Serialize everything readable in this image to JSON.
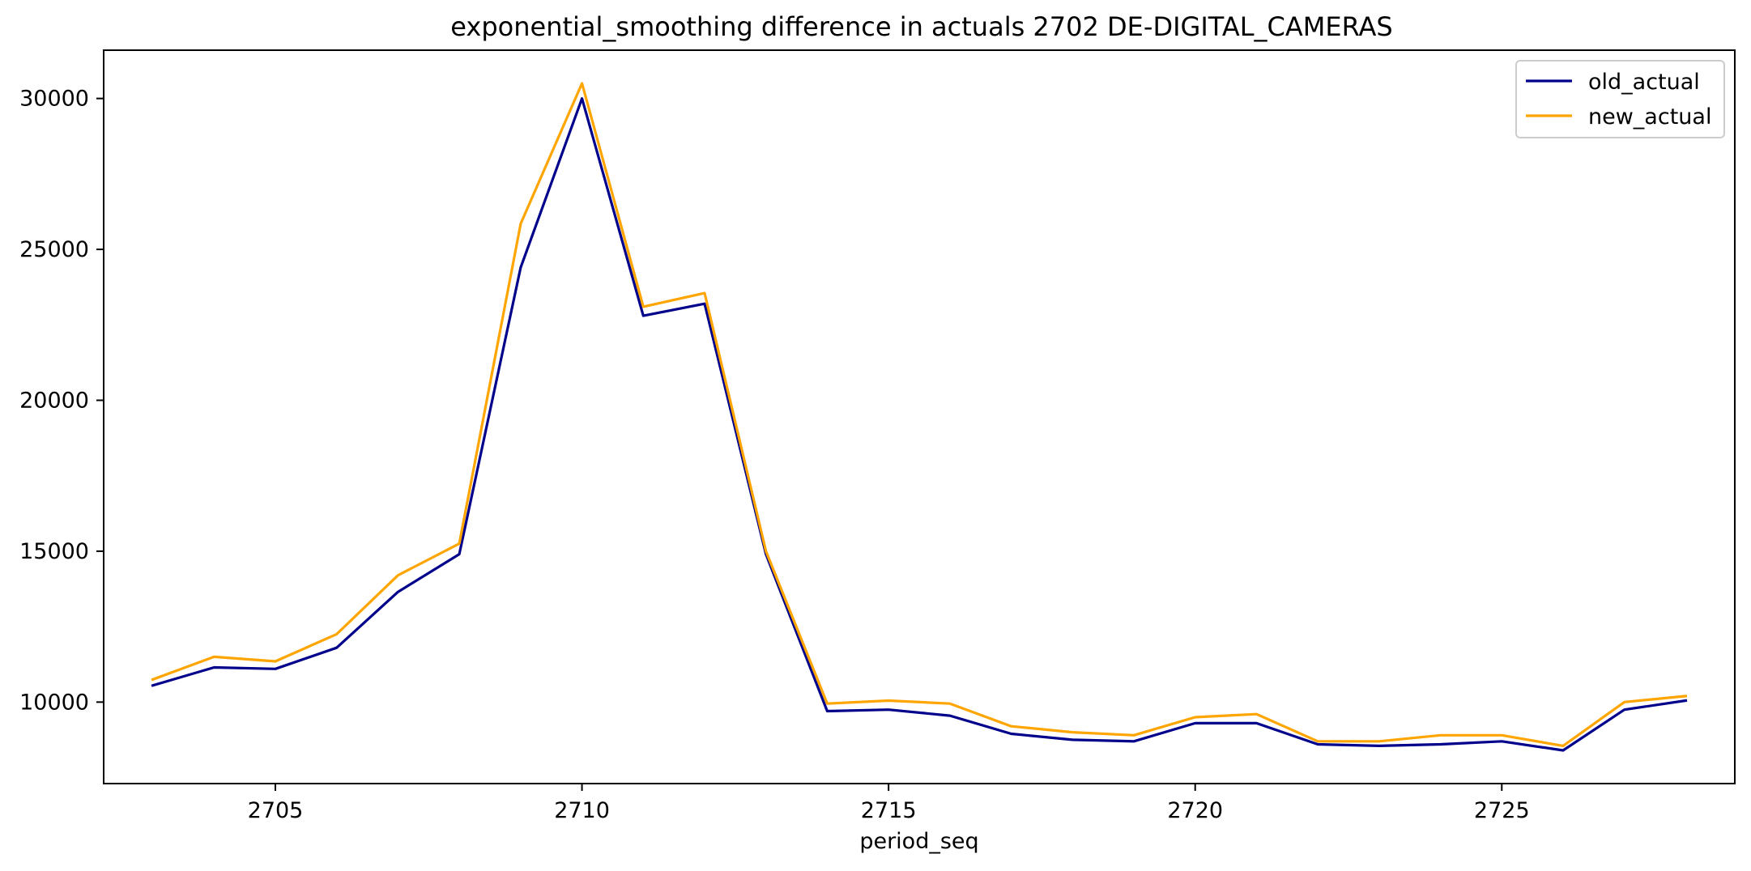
{
  "chart_data": {
    "type": "line",
    "title": "exponential_smoothing difference in actuals 2702 DE-DIGITAL_CAMERAS",
    "xlabel": "period_seq",
    "ylabel": "",
    "xlim": [
      2702.2,
      2728.8
    ],
    "ylim": [
      7300,
      31600
    ],
    "xticks": [
      2705,
      2710,
      2715,
      2720,
      2725
    ],
    "yticks": [
      10000,
      15000,
      20000,
      25000,
      30000
    ],
    "grid": false,
    "legend_position": "upper right",
    "x": [
      2703,
      2704,
      2705,
      2706,
      2707,
      2708,
      2709,
      2710,
      2711,
      2712,
      2713,
      2714,
      2715,
      2716,
      2717,
      2718,
      2719,
      2720,
      2721,
      2722,
      2723,
      2724,
      2725,
      2726,
      2727,
      2728
    ],
    "series": [
      {
        "name": "old_actual",
        "color": "#00008b",
        "values": [
          10550,
          11150,
          11100,
          11800,
          13650,
          14900,
          24400,
          30000,
          22800,
          23200,
          14900,
          9700,
          9750,
          9550,
          8950,
          8750,
          8700,
          9300,
          9300,
          8600,
          8550,
          8600,
          8700,
          8400,
          9750,
          10050
        ]
      },
      {
        "name": "new_actual",
        "color": "#ffa500",
        "values": [
          10750,
          11500,
          11350,
          12250,
          14200,
          15250,
          25850,
          30500,
          23100,
          23550,
          15000,
          9950,
          10050,
          9950,
          9200,
          9000,
          8900,
          9500,
          9600,
          8700,
          8700,
          8900,
          8900,
          8550,
          10000,
          10200
        ]
      }
    ]
  }
}
